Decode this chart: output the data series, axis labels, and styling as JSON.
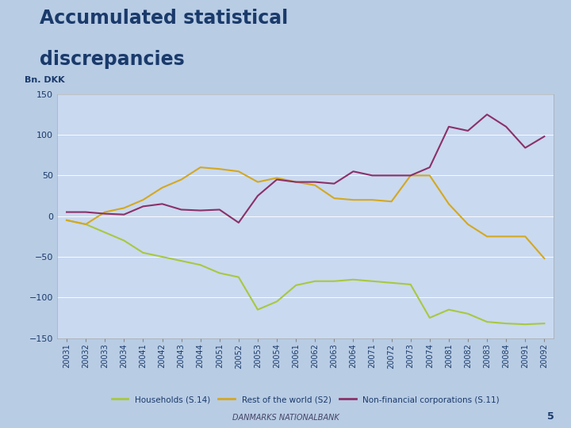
{
  "title_line1": "Accumulated statistical",
  "title_line2": "discrepancies",
  "ylabel": "Bn. DKK",
  "footer": "DANMARKS NATIONALBANK",
  "page_num": "5",
  "ylim": [
    -150,
    150
  ],
  "yticks": [
    -150,
    -100,
    -50,
    0,
    50,
    100,
    150
  ],
  "bg_color": "#b8cce4",
  "plot_bg_color": "#c9d9f0",
  "title_color": "#1a3a6b",
  "x_labels": [
    "20031",
    "20032",
    "20033",
    "20034",
    "20041",
    "20042",
    "20043",
    "20044",
    "20051",
    "20052",
    "20053",
    "20054",
    "20061",
    "20062",
    "20063",
    "20064",
    "20071",
    "20072",
    "20073",
    "20074",
    "20081",
    "20082",
    "20083",
    "20084",
    "20091",
    "20092"
  ],
  "households": [
    -5,
    -10,
    -20,
    -30,
    -45,
    -50,
    -55,
    -60,
    -70,
    -75,
    -115,
    -105,
    -85,
    -80,
    -80,
    -78,
    -80,
    -82,
    -84,
    -125,
    -115,
    -120,
    -130,
    -132,
    -133,
    -132
  ],
  "rest_of_world": [
    -5,
    -10,
    5,
    10,
    20,
    35,
    45,
    60,
    58,
    55,
    42,
    47,
    42,
    38,
    22,
    20,
    20,
    18,
    50,
    50,
    15,
    -10,
    -25,
    -25,
    -25,
    -52
  ],
  "non_financial": [
    5,
    5,
    3,
    2,
    12,
    15,
    8,
    7,
    8,
    -8,
    25,
    45,
    42,
    42,
    40,
    55,
    50,
    50,
    50,
    60,
    110,
    105,
    125,
    110,
    84,
    98
  ],
  "households_color": "#a8c840",
  "rest_of_world_color": "#d4a820",
  "non_financial_color": "#8b3068",
  "line_width": 1.5,
  "legend_labels": [
    "Households (S.14)",
    "Rest of the world (S2)",
    "Non-financial corporations (S.11)"
  ],
  "sidebar_color": "#1a3564"
}
